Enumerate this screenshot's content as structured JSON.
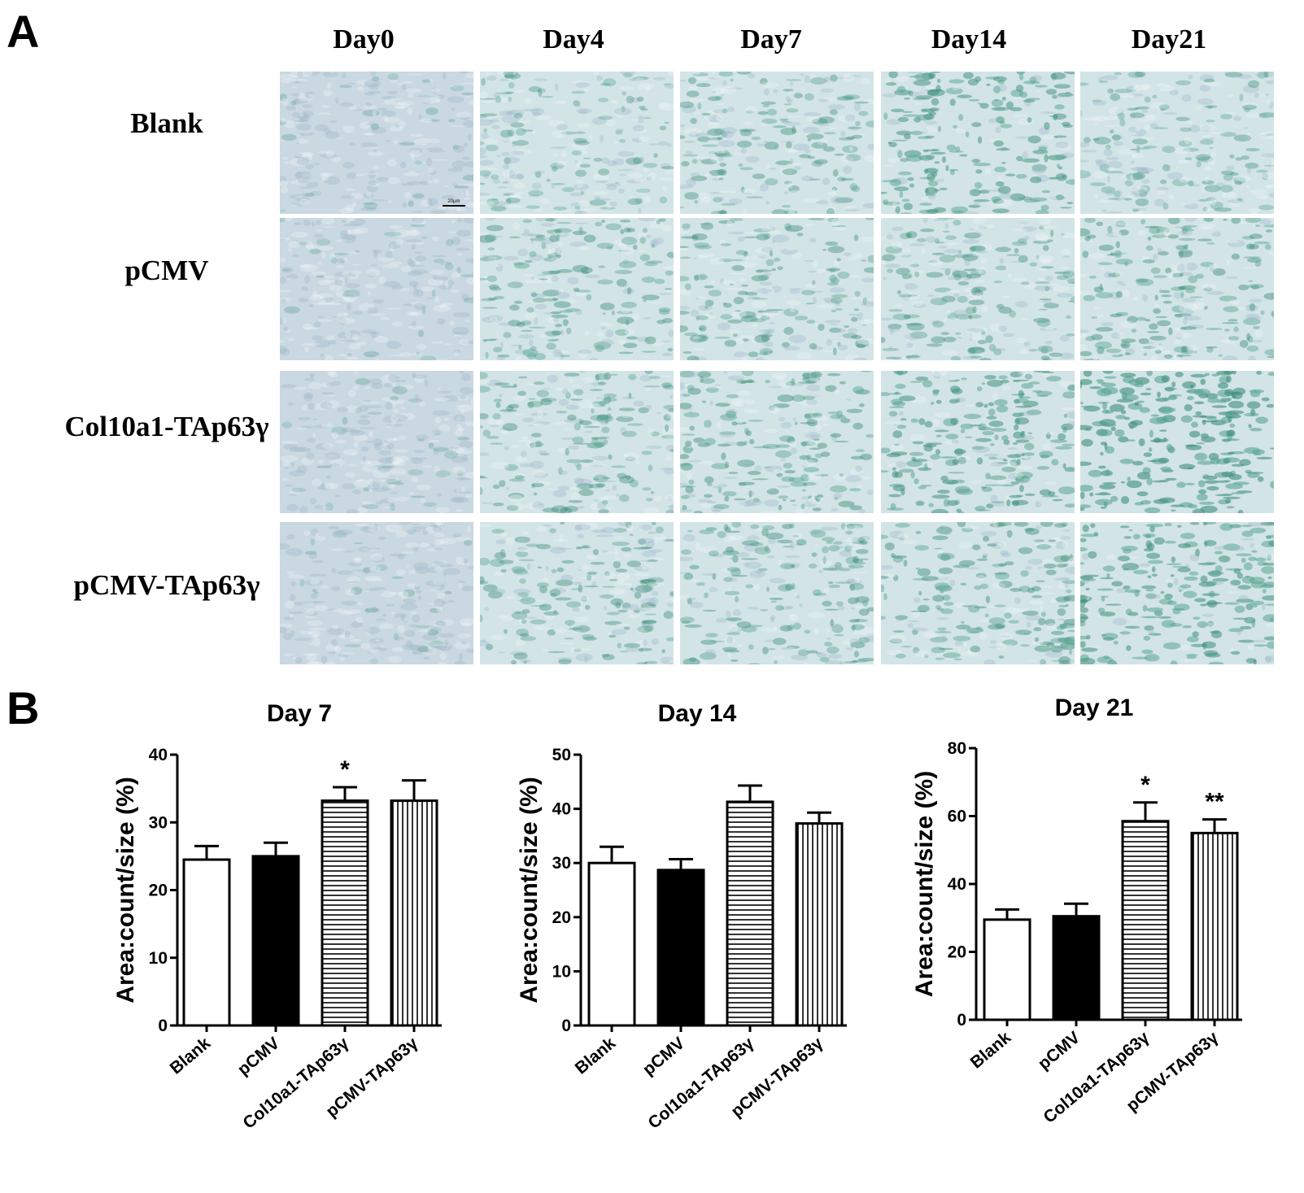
{
  "panel_a": {
    "letter": "A",
    "columns": [
      "Day0",
      "Day4",
      "Day7",
      "Day14",
      "Day21"
    ],
    "rows": [
      "Blank",
      "pCMV",
      "Col10a1-TAp63γ",
      "pCMV-TAp63γ"
    ],
    "scale_label": "20μm"
  },
  "panel_b": {
    "letter": "B"
  },
  "chart_data": [
    {
      "type": "bar",
      "title": "Day 7",
      "ylabel": "Area:count/size (%)",
      "categories": [
        "Blank",
        "pCMV",
        "Col10a1-TAp63γ",
        "pCMV-TAp63γ"
      ],
      "values": [
        24.5,
        25,
        33.2,
        33.2
      ],
      "errors": [
        2,
        2,
        2,
        3
      ],
      "significance": [
        "",
        "",
        "*",
        ""
      ],
      "ylim": [
        0,
        40
      ],
      "yticks": [
        0,
        10,
        20,
        30,
        40
      ],
      "fills": [
        "white",
        "black",
        "horizontal",
        "vertical"
      ]
    },
    {
      "type": "bar",
      "title": "Day 14",
      "ylabel": "Area:count/size (%)",
      "categories": [
        "Blank",
        "pCMV",
        "Col10a1-TAp63γ",
        "pCMV-TAp63γ"
      ],
      "values": [
        30,
        28.7,
        41.3,
        37.3
      ],
      "errors": [
        3,
        2,
        3,
        2
      ],
      "significance": [
        "",
        "",
        "",
        ""
      ],
      "ylim": [
        0,
        50
      ],
      "yticks": [
        0,
        10,
        20,
        30,
        40,
        50
      ],
      "fills": [
        "white",
        "black",
        "horizontal",
        "vertical"
      ]
    },
    {
      "type": "bar",
      "title": "Day 21",
      "ylabel": "Area:count/size (%)",
      "categories": [
        "Blank",
        "pCMV",
        "Col10a1-TAp63γ",
        "pCMV-TAp63γ"
      ],
      "values": [
        29.5,
        30.5,
        58.5,
        55
      ],
      "errors": [
        3,
        3.7,
        5.5,
        4
      ],
      "significance": [
        "",
        "",
        "*",
        "**"
      ],
      "ylim": [
        0,
        80
      ],
      "yticks": [
        0,
        20,
        40,
        60,
        80
      ],
      "fills": [
        "white",
        "black",
        "horizontal",
        "vertical"
      ]
    }
  ]
}
